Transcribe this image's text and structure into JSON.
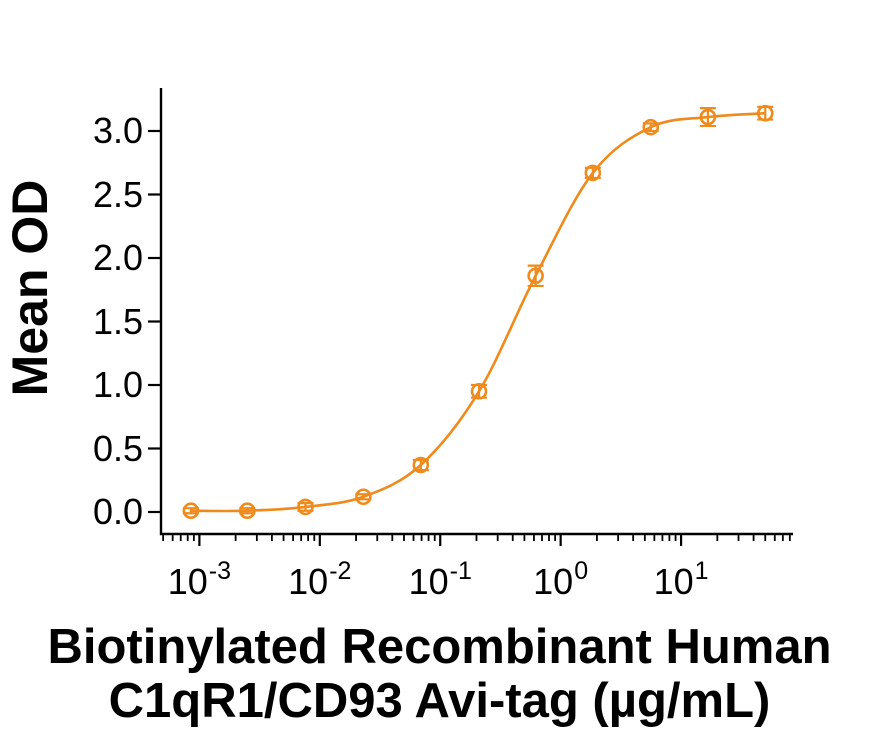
{
  "figure": {
    "y_axis_title": "Mean OD",
    "x_axis_title_line1": "Biotinylated Recombinant Human",
    "x_axis_title_line2": "C1qR1/CD93 Avi-tag (µg/mL)"
  },
  "chart_data": {
    "type": "line",
    "title": "",
    "xlabel": "Biotinylated Recombinant Human C1qR1/CD93 Avi-tag (µg/mL)",
    "ylabel": "Mean OD",
    "x_scale": "log10",
    "xlim": [
      0.00048,
      85
    ],
    "ylim": [
      -0.17,
      3.34
    ],
    "grid": false,
    "legend_position": "none",
    "x_tick_exponents": [
      -3,
      -2,
      -1,
      0,
      1
    ],
    "y_ticks": [
      0,
      0.5,
      1,
      1.5,
      2,
      2.5,
      3
    ],
    "y_tick_labels": [
      "0.0",
      "0.5",
      "1.0",
      "1.5",
      "2.0",
      "2.5",
      "3.0"
    ],
    "series": [
      {
        "name": "Biotinylated Recombinant Human C1qR1/CD93 Avi-tag",
        "color": "#EF8A1C",
        "marker": "open-circle",
        "x": [
          0.00085,
          0.0025,
          0.0076,
          0.023,
          0.069,
          0.21,
          0.62,
          1.85,
          5.6,
          16.7,
          50
        ],
        "y": [
          0.01,
          0.01,
          0.04,
          0.12,
          0.37,
          0.95,
          1.86,
          2.67,
          3.03,
          3.11,
          3.14
        ],
        "yerr": [
          0.02,
          0.02,
          0.03,
          0.02,
          0.04,
          0.05,
          0.08,
          0.04,
          0.03,
          0.07,
          0.05
        ]
      }
    ]
  }
}
